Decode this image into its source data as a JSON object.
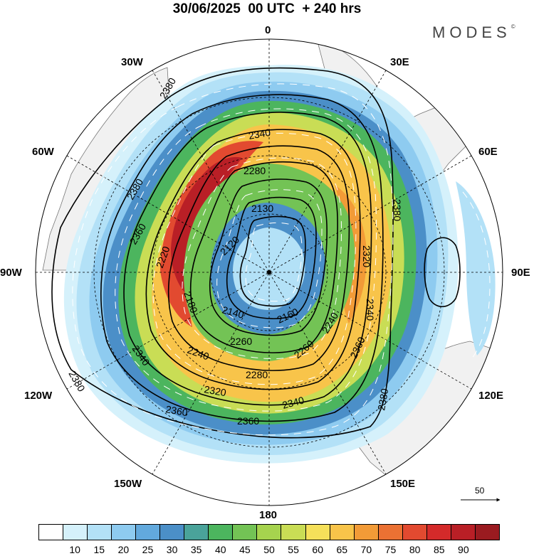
{
  "header": {
    "title": "30/06/2025  00 UTC  + 240 hrs",
    "brand": "MODES"
  },
  "map": {
    "projection": "south polar stereographic",
    "longitude_labels": {
      "top": "0",
      "top_left": "30W",
      "top_right": "30E",
      "upper_left": "60W",
      "upper_right": "60E",
      "left": "90W",
      "right": "90E",
      "lower_left": "120W",
      "lower_right": "120E",
      "bottom_left": "150W",
      "bottom_right": "150E",
      "bottom": "180"
    },
    "contour_labels": [
      "2380",
      "2380",
      "2340",
      "2280",
      "2130",
      "2120",
      "2220",
      "2380",
      "2360",
      "2320",
      "2340",
      "2160",
      "2140",
      "2180",
      "2240",
      "2260",
      "2260",
      "2240",
      "2340",
      "2360",
      "2280",
      "2320",
      "2360",
      "2340",
      "2360",
      "2380",
      "2380"
    ],
    "vector_reference": "50"
  },
  "colorbar": {
    "colors": [
      "#ffffff",
      "#d5f1fb",
      "#b3e1f7",
      "#8ecbf0",
      "#62a9dd",
      "#4b8fc8",
      "#4aa39a",
      "#4cb55e",
      "#73c355",
      "#a6d34e",
      "#c9dd55",
      "#f5e05a",
      "#f8c44a",
      "#f29b37",
      "#eb7133",
      "#e24a30",
      "#d42a2a",
      "#b91f26",
      "#9a1b20"
    ],
    "ticks": [
      "10",
      "15",
      "20",
      "25",
      "30",
      "35",
      "40",
      "45",
      "50",
      "55",
      "60",
      "65",
      "70",
      "75",
      "80",
      "85",
      "90"
    ]
  }
}
